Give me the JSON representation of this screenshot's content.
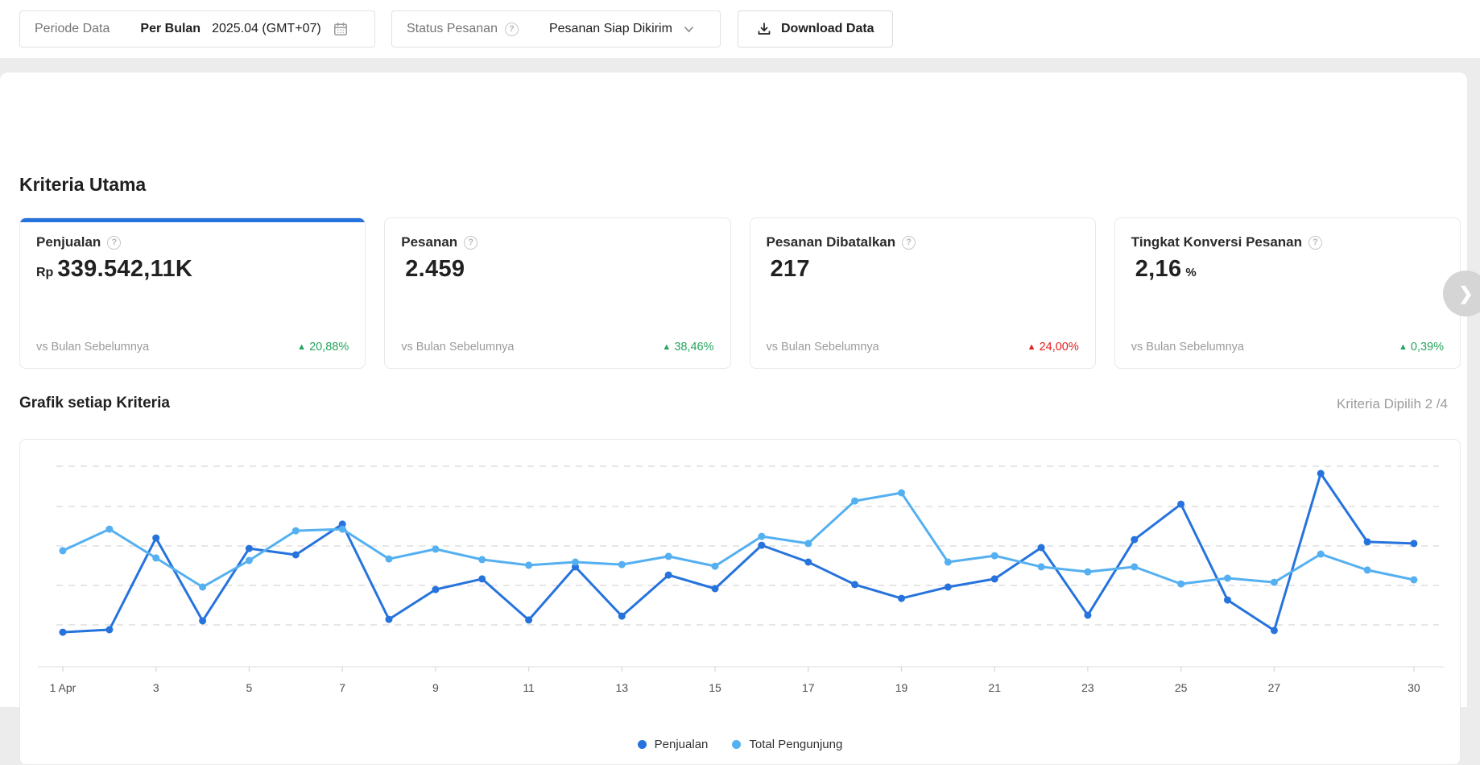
{
  "topbar": {
    "periode_label": "Periode Data",
    "periode_mode": "Per Bulan",
    "periode_value": "2025.04 (GMT+07)",
    "status_label": "Status Pesanan",
    "status_value": "Pesanan Siap Dikirim",
    "download_label": "Download Data"
  },
  "section_title": "Kriteria Utama",
  "cards": [
    {
      "title": "Penjualan",
      "prefix": "Rp",
      "value": "339.542,11K",
      "suffix": "",
      "compare_label": "vs Bulan Sebelumnya",
      "arrow": "▲",
      "delta": "20,88%",
      "delta_color": "#26A55F",
      "selected": true
    },
    {
      "title": "Pesanan",
      "prefix": "",
      "value": "2.459",
      "suffix": "",
      "compare_label": "vs Bulan Sebelumnya",
      "arrow": "▲",
      "delta": "38,46%",
      "delta_color": "#26A55F",
      "selected": false
    },
    {
      "title": "Pesanan Dibatalkan",
      "prefix": "",
      "value": "217",
      "suffix": "",
      "compare_label": "vs Bulan Sebelumnya",
      "arrow": "▲",
      "delta": "24,00%",
      "delta_color": "#E02020",
      "selected": false
    },
    {
      "title": "Tingkat Konversi Pesanan",
      "prefix": "",
      "value": "2,16",
      "suffix": "%",
      "compare_label": "vs Bulan Sebelumnya",
      "arrow": "▲",
      "delta": "0,39%",
      "delta_color": "#26A55F",
      "selected": false
    }
  ],
  "chart_section": {
    "title": "Grafik setiap Kriteria",
    "selected_info": "Kriteria Dipilih 2 /4"
  },
  "chart_data": {
    "type": "line",
    "x_days": [
      1,
      2,
      3,
      4,
      5,
      6,
      7,
      8,
      9,
      10,
      11,
      12,
      13,
      14,
      15,
      16,
      17,
      18,
      19,
      20,
      21,
      22,
      23,
      24,
      25,
      26,
      27,
      28,
      29,
      30
    ],
    "x_tick_days": [
      1,
      3,
      5,
      7,
      9,
      11,
      13,
      15,
      17,
      19,
      21,
      23,
      25,
      27,
      30
    ],
    "x_tick_labels": [
      "1 Apr",
      "3",
      "5",
      "7",
      "9",
      "11",
      "13",
      "15",
      "17",
      "19",
      "21",
      "23",
      "25",
      "27",
      "30"
    ],
    "y_axis_visible": false,
    "y_unit": "normalized-0-100",
    "ylim": [
      0,
      100
    ],
    "grid": "horizontal-dashed",
    "legend_position": "bottom",
    "series": [
      {
        "name": "Penjualan",
        "color": "#2673DD",
        "values": [
          15.2,
          16.3,
          56.7,
          20.2,
          52.1,
          49.3,
          62.8,
          20.9,
          34.0,
          38.7,
          20.6,
          44.0,
          22.3,
          40.4,
          34.4,
          53.5,
          46.1,
          36.2,
          30.1,
          35.1,
          38.7,
          52.5,
          22.7,
          56.0,
          71.6,
          29.4,
          16.0,
          85.1,
          55.0,
          54.3
        ]
      },
      {
        "name": "Total Pengunjung",
        "color": "#54B0F0",
        "values": [
          51.1,
          60.6,
          47.9,
          35.1,
          46.8,
          59.9,
          60.6,
          47.5,
          51.8,
          47.2,
          44.7,
          46.1,
          45.0,
          48.6,
          44.3,
          57.4,
          54.3,
          73.0,
          76.6,
          46.1,
          48.9,
          44.0,
          41.8,
          44.0,
          36.5,
          39.0,
          37.2,
          49.6,
          42.6,
          38.3
        ]
      }
    ]
  },
  "colors": {
    "accent_blue": "#2673DD",
    "light_blue": "#54B0F0",
    "positive_green": "#26A55F",
    "negative_red": "#E02020"
  }
}
